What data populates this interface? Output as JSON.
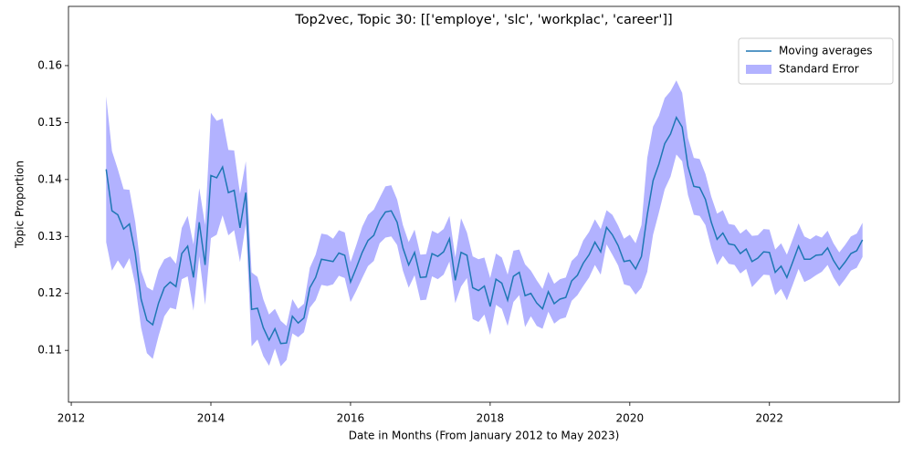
{
  "chart_data": {
    "type": "line",
    "title": "Top2vec, Topic 30: [['employe', 'slc', 'workplac', 'career']]",
    "x_label": "Date in Months (From January 2012 to May 2023)",
    "y_label": "Topic Proportion",
    "x": [
      2012.5,
      2012.583,
      2012.667,
      2012.75,
      2012.833,
      2012.917,
      2013,
      2013.083,
      2013.167,
      2013.25,
      2013.333,
      2013.417,
      2013.5,
      2013.583,
      2013.667,
      2013.75,
      2013.833,
      2013.917,
      2014,
      2014.083,
      2014.167,
      2014.25,
      2014.333,
      2014.417,
      2014.5,
      2014.583,
      2014.667,
      2014.75,
      2014.833,
      2014.917,
      2015,
      2015.083,
      2015.167,
      2015.25,
      2015.333,
      2015.417,
      2015.5,
      2015.583,
      2015.667,
      2015.75,
      2015.833,
      2015.917,
      2016,
      2016.083,
      2016.167,
      2016.25,
      2016.333,
      2016.417,
      2016.5,
      2016.583,
      2016.667,
      2016.75,
      2016.833,
      2016.917,
      2017,
      2017.083,
      2017.167,
      2017.25,
      2017.333,
      2017.417,
      2017.5,
      2017.583,
      2017.667,
      2017.75,
      2017.833,
      2017.917,
      2018,
      2018.083,
      2018.167,
      2018.25,
      2018.333,
      2018.417,
      2018.5,
      2018.583,
      2018.667,
      2018.75,
      2018.833,
      2018.917,
      2019,
      2019.083,
      2019.167,
      2019.25,
      2019.333,
      2019.417,
      2019.5,
      2019.583,
      2019.667,
      2019.75,
      2019.833,
      2019.917,
      2020,
      2020.083,
      2020.167,
      2020.25,
      2020.333,
      2020.417,
      2020.5,
      2020.583,
      2020.667,
      2020.75,
      2020.833,
      2020.917,
      2021,
      2021.083,
      2021.167,
      2021.25,
      2021.333,
      2021.417,
      2021.5,
      2021.583,
      2021.667,
      2021.75,
      2021.833,
      2021.917,
      2022,
      2022.083,
      2022.167,
      2022.25,
      2022.333,
      2022.417,
      2022.5,
      2022.583,
      2022.667,
      2022.75,
      2022.833,
      2022.917,
      2023,
      2023.083,
      2023.167,
      2023.25,
      2023.333
    ],
    "series": [
      {
        "name": "Moving averages",
        "color": "#1f77b4",
        "values": [
          0.1418,
          0.1345,
          0.1338,
          0.1313,
          0.1322,
          0.127,
          0.119,
          0.1153,
          0.1145,
          0.1183,
          0.121,
          0.122,
          0.1212,
          0.127,
          0.1283,
          0.1228,
          0.1325,
          0.125,
          0.1407,
          0.1403,
          0.1422,
          0.1377,
          0.1381,
          0.1315,
          0.1377,
          0.1172,
          0.1174,
          0.114,
          0.1118,
          0.1138,
          0.1112,
          0.1113,
          0.116,
          0.1148,
          0.1157,
          0.121,
          0.1228,
          0.126,
          0.1258,
          0.1256,
          0.1271,
          0.1267,
          0.122,
          0.1245,
          0.1272,
          0.1293,
          0.1302,
          0.1328,
          0.1343,
          0.1345,
          0.1325,
          0.128,
          0.125,
          0.1272,
          0.1228,
          0.1229,
          0.127,
          0.1265,
          0.1273,
          0.1296,
          0.1223,
          0.1272,
          0.1267,
          0.121,
          0.1205,
          0.1213,
          0.1177,
          0.1225,
          0.1218,
          0.1188,
          0.123,
          0.1237,
          0.1196,
          0.12,
          0.1183,
          0.1173,
          0.1203,
          0.1182,
          0.119,
          0.1193,
          0.1222,
          0.1232,
          0.1253,
          0.1268,
          0.129,
          0.1273,
          0.1316,
          0.1303,
          0.1284,
          0.1256,
          0.1258,
          0.1243,
          0.1265,
          0.1338,
          0.1398,
          0.1427,
          0.1463,
          0.148,
          0.1509,
          0.1492,
          0.1423,
          0.1388,
          0.1386,
          0.1365,
          0.1325,
          0.1295,
          0.1306,
          0.1287,
          0.1285,
          0.127,
          0.1278,
          0.1256,
          0.1262,
          0.1273,
          0.1272,
          0.1237,
          0.1248,
          0.1228,
          0.1255,
          0.1283,
          0.126,
          0.126,
          0.1267,
          0.1268,
          0.128,
          0.1258,
          0.1242,
          0.1255,
          0.127,
          0.1275,
          0.1294
        ]
      },
      {
        "name": "Standard Error",
        "color": "#b2b2ff",
        "values": [
          0.0128,
          0.0105,
          0.008,
          0.007,
          0.006,
          0.0055,
          0.005,
          0.0058,
          0.006,
          0.0058,
          0.005,
          0.0045,
          0.004,
          0.0045,
          0.0053,
          0.0058,
          0.006,
          0.007,
          0.011,
          0.01,
          0.0085,
          0.0075,
          0.007,
          0.006,
          0.0055,
          0.0065,
          0.0055,
          0.005,
          0.0045,
          0.0035,
          0.004,
          0.003,
          0.003,
          0.0025,
          0.0025,
          0.0035,
          0.004,
          0.0045,
          0.0045,
          0.004,
          0.004,
          0.004,
          0.0035,
          0.004,
          0.0045,
          0.0045,
          0.0045,
          0.004,
          0.0045,
          0.0045,
          0.004,
          0.004,
          0.004,
          0.004,
          0.004,
          0.004,
          0.004,
          0.004,
          0.004,
          0.004,
          0.004,
          0.006,
          0.004,
          0.0055,
          0.0055,
          0.005,
          0.005,
          0.0045,
          0.0045,
          0.0045,
          0.0045,
          0.004,
          0.0055,
          0.004,
          0.004,
          0.0035,
          0.0035,
          0.0035,
          0.0035,
          0.0035,
          0.0035,
          0.0035,
          0.004,
          0.004,
          0.004,
          0.004,
          0.003,
          0.0035,
          0.0035,
          0.004,
          0.0045,
          0.0045,
          0.0055,
          0.01,
          0.0095,
          0.0085,
          0.008,
          0.0075,
          0.0065,
          0.006,
          0.005,
          0.005,
          0.005,
          0.0045,
          0.0045,
          0.0045,
          0.004,
          0.0035,
          0.0035,
          0.0035,
          0.0035,
          0.0045,
          0.004,
          0.004,
          0.004,
          0.004,
          0.004,
          0.004,
          0.004,
          0.004,
          0.004,
          0.0035,
          0.0035,
          0.003,
          0.003,
          0.003,
          0.003,
          0.003,
          0.003,
          0.003,
          0.003
        ]
      }
    ],
    "xlim": [
      2011.96,
      2023.86
    ],
    "xticks": [
      2012,
      2014,
      2016,
      2018,
      2020,
      2022
    ],
    "ylim": [
      0.1009,
      0.1704
    ],
    "yticks": [
      0.11,
      0.12,
      0.13,
      0.14,
      0.15,
      0.16
    ],
    "legend": "upper right"
  }
}
